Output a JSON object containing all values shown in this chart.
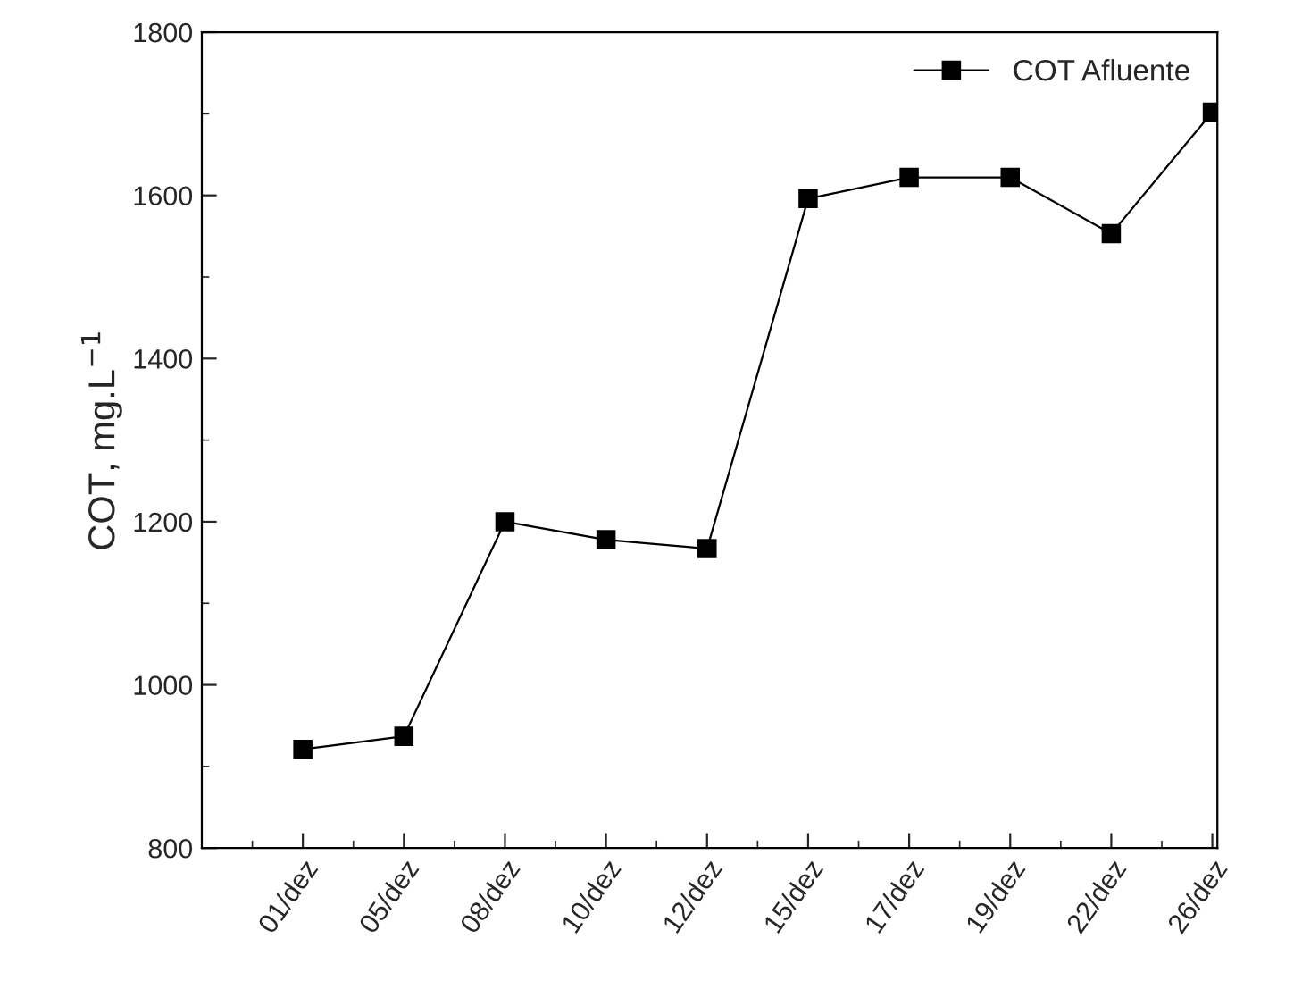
{
  "chart_data": {
    "type": "line",
    "ylabel": "COT, mg.L$^{−1}$",
    "categories": [
      "01/dez",
      "05/dez",
      "08/dez",
      "10/dez",
      "12/dez",
      "15/dez",
      "17/dez",
      "19/dez",
      "22/dez",
      "26/dez"
    ],
    "series": [
      {
        "name": "COT Afluente",
        "color": "#000000",
        "values": [
          921,
          937,
          1200,
          1178,
          1167,
          1596,
          1622,
          1622,
          1553,
          1702
        ]
      }
    ],
    "ylim": [
      800,
      1800
    ],
    "yticks": [
      800,
      1000,
      1200,
      1400,
      1600,
      1800
    ],
    "marker": "square",
    "line_style": "solid",
    "legend": "top right",
    "grid": false
  }
}
